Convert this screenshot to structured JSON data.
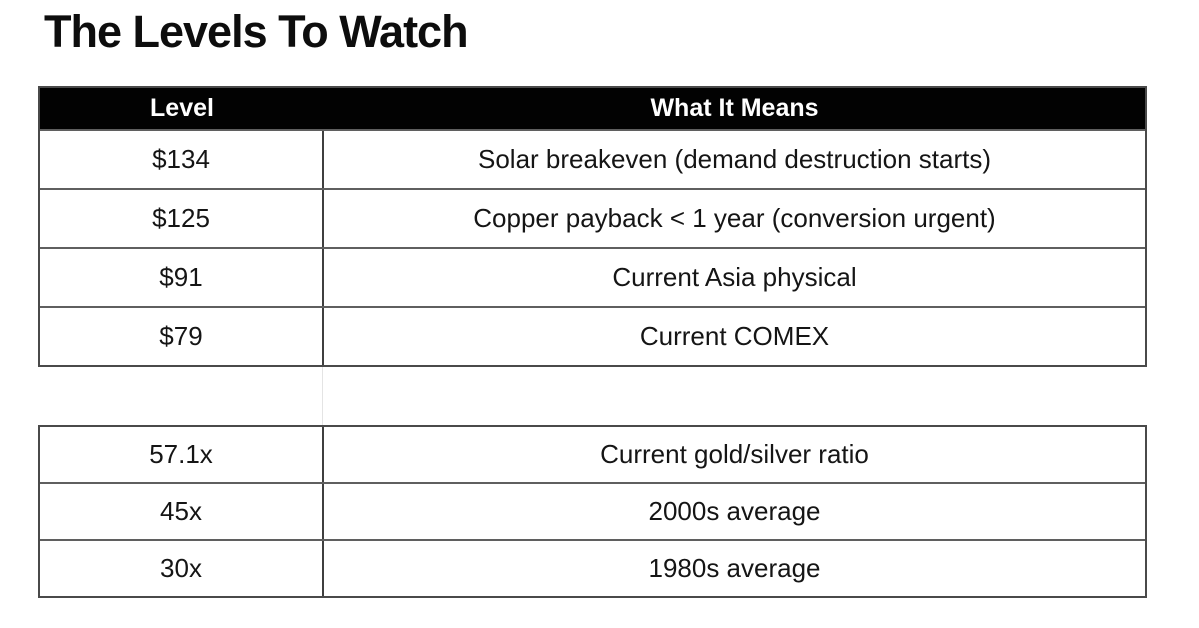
{
  "chart_data": {
    "type": "table",
    "title": "The Levels To Watch",
    "columns": [
      "Level",
      "What It Means"
    ],
    "sections": [
      {
        "rows": [
          [
            "$134",
            "Solar breakeven (demand destruction starts)"
          ],
          [
            "$125",
            "Copper payback < 1 year (conversion urgent)"
          ],
          [
            "$91",
            "Current Asia physical"
          ],
          [
            "$79",
            "Current COMEX"
          ]
        ]
      },
      {
        "rows": [
          [
            "57.1x",
            "Current gold/silver ratio"
          ],
          [
            "45x",
            "2000s average"
          ],
          [
            "30x",
            "1980s average"
          ]
        ]
      }
    ],
    "style": {
      "header_bg": "#000000",
      "header_text_color": "#ffffff",
      "body_text_color": "#151515",
      "border_color": "#4a4a4a",
      "background": "#ffffff"
    },
    "layout_hints": {
      "two_column_table": true,
      "blank_spacer_row_between_sections": true,
      "all_cells_center_aligned": true
    }
  }
}
